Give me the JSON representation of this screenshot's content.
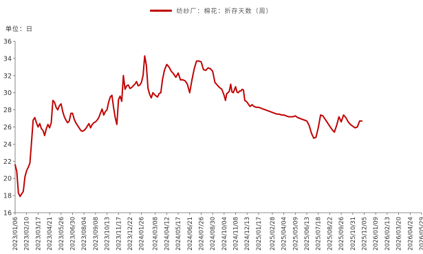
{
  "chart_data": {
    "type": "line",
    "legend": "纺纱厂：棉花：折存天数（周）",
    "unit_label": "单位：日",
    "ylim": [
      16,
      36
    ],
    "y_ticks": [
      16,
      18,
      20,
      22,
      24,
      26,
      28,
      30,
      32,
      34,
      36
    ],
    "x_range": [
      "2023-01-06",
      "2026-05-29"
    ],
    "x_ticks": [
      "2023/01/06",
      "2023/02/10",
      "2023/03/17",
      "2023/04/21",
      "2023/05/26",
      "2023/06/30",
      "2023/08/04",
      "2023/09/08",
      "2023/10/13",
      "2023/11/17",
      "2023/12/22",
      "2024/01/26",
      "2024/03/08",
      "2024/04/12",
      "2024/05/17",
      "2024/06/21",
      "2024/07/26",
      "2024/08/30",
      "2024/10/04",
      "2024/11/08",
      "2024/12/13",
      "2025/01/17",
      "2025/02/28",
      "2025/04/04",
      "2025/05/09",
      "2025/06/13",
      "2025/07/18",
      "2025/08/22",
      "2025/09/26",
      "2025/10/31",
      "2025/12/05",
      "2026/01/09",
      "2026/02/13",
      "2026/03/20",
      "2026/04/24",
      "2026/05/29"
    ],
    "grid": false,
    "legend_position": "top-center",
    "series": [
      {
        "name": "纺纱厂：棉花：折存天数（周）",
        "color": "#c00000",
        "points": [
          [
            "2023-01-06",
            21.6
          ],
          [
            "2023-01-11",
            20.8
          ],
          [
            "2023-01-16",
            18.3
          ],
          [
            "2023-01-21",
            17.9
          ],
          [
            "2023-01-26",
            18.2
          ],
          [
            "2023-01-31",
            18.5
          ],
          [
            "2023-02-05",
            20.2
          ],
          [
            "2023-02-10",
            20.9
          ],
          [
            "2023-02-15",
            21.3
          ],
          [
            "2023-02-20",
            21.8
          ],
          [
            "2023-02-25",
            24.2
          ],
          [
            "2023-03-02",
            26.8
          ],
          [
            "2023-03-07",
            27.1
          ],
          [
            "2023-03-12",
            26.5
          ],
          [
            "2023-03-17",
            26.0
          ],
          [
            "2023-03-22",
            26.4
          ],
          [
            "2023-03-27",
            25.8
          ],
          [
            "2023-04-01",
            25.6
          ],
          [
            "2023-04-06",
            25.0
          ],
          [
            "2023-04-11",
            25.8
          ],
          [
            "2023-04-16",
            26.3
          ],
          [
            "2023-04-21",
            25.9
          ],
          [
            "2023-04-26",
            26.5
          ],
          [
            "2023-05-01",
            29.1
          ],
          [
            "2023-05-06",
            28.9
          ],
          [
            "2023-05-11",
            28.3
          ],
          [
            "2023-05-16",
            28.0
          ],
          [
            "2023-05-21",
            28.5
          ],
          [
            "2023-05-26",
            28.7
          ],
          [
            "2023-05-31",
            27.8
          ],
          [
            "2023-06-05",
            27.2
          ],
          [
            "2023-06-10",
            26.8
          ],
          [
            "2023-06-15",
            26.5
          ],
          [
            "2023-06-20",
            26.7
          ],
          [
            "2023-06-25",
            27.6
          ],
          [
            "2023-06-30",
            27.6
          ],
          [
            "2023-07-05",
            26.9
          ],
          [
            "2023-07-10",
            26.5
          ],
          [
            "2023-07-15",
            26.2
          ],
          [
            "2023-07-20",
            25.9
          ],
          [
            "2023-07-25",
            25.6
          ],
          [
            "2023-07-30",
            25.5
          ],
          [
            "2023-08-04",
            25.6
          ],
          [
            "2023-08-09",
            25.8
          ],
          [
            "2023-08-14",
            26.1
          ],
          [
            "2023-08-19",
            26.4
          ],
          [
            "2023-08-24",
            25.9
          ],
          [
            "2023-08-29",
            26.3
          ],
          [
            "2023-09-03",
            26.5
          ],
          [
            "2023-09-08",
            26.6
          ],
          [
            "2023-09-13",
            26.8
          ],
          [
            "2023-09-18",
            27.1
          ],
          [
            "2023-09-23",
            27.6
          ],
          [
            "2023-09-28",
            28.1
          ],
          [
            "2023-10-03",
            27.4
          ],
          [
            "2023-10-08",
            27.8
          ],
          [
            "2023-10-13",
            28.0
          ],
          [
            "2023-10-18",
            28.9
          ],
          [
            "2023-10-23",
            29.5
          ],
          [
            "2023-10-28",
            29.7
          ],
          [
            "2023-11-02",
            28.3
          ],
          [
            "2023-11-07",
            27.1
          ],
          [
            "2023-11-12",
            26.3
          ],
          [
            "2023-11-17",
            29.2
          ],
          [
            "2023-11-22",
            29.6
          ],
          [
            "2023-11-27",
            29.0
          ],
          [
            "2023-12-02",
            32.0
          ],
          [
            "2023-12-07",
            30.4
          ],
          [
            "2023-12-12",
            30.8
          ],
          [
            "2023-12-17",
            30.9
          ],
          [
            "2023-12-22",
            30.5
          ],
          [
            "2023-12-27",
            30.6
          ],
          [
            "2024-01-01",
            30.8
          ],
          [
            "2024-01-06",
            31.0
          ],
          [
            "2024-01-11",
            31.3
          ],
          [
            "2024-01-16",
            30.8
          ],
          [
            "2024-01-21",
            30.9
          ],
          [
            "2024-01-26",
            31.2
          ],
          [
            "2024-01-31",
            32.0
          ],
          [
            "2024-02-05",
            34.3
          ],
          [
            "2024-02-10",
            33.2
          ],
          [
            "2024-02-15",
            30.5
          ],
          [
            "2024-02-20",
            29.8
          ],
          [
            "2024-02-25",
            29.4
          ],
          [
            "2024-03-01",
            30.0
          ],
          [
            "2024-03-08",
            29.7
          ],
          [
            "2024-03-15",
            29.5
          ],
          [
            "2024-03-20",
            29.9
          ],
          [
            "2024-03-25",
            30.0
          ],
          [
            "2024-03-30",
            31.5
          ],
          [
            "2024-04-05",
            32.6
          ],
          [
            "2024-04-12",
            33.3
          ],
          [
            "2024-04-19",
            33.0
          ],
          [
            "2024-04-26",
            32.5
          ],
          [
            "2024-05-03",
            32.2
          ],
          [
            "2024-05-10",
            31.8
          ],
          [
            "2024-05-17",
            32.3
          ],
          [
            "2024-05-24",
            31.5
          ],
          [
            "2024-05-31",
            31.5
          ],
          [
            "2024-06-07",
            31.4
          ],
          [
            "2024-06-14",
            31.0
          ],
          [
            "2024-06-21",
            30.0
          ],
          [
            "2024-06-28",
            31.5
          ],
          [
            "2024-07-05",
            32.8
          ],
          [
            "2024-07-12",
            33.7
          ],
          [
            "2024-07-19",
            33.7
          ],
          [
            "2024-07-26",
            33.6
          ],
          [
            "2024-08-02",
            32.7
          ],
          [
            "2024-08-09",
            32.6
          ],
          [
            "2024-08-16",
            32.9
          ],
          [
            "2024-08-23",
            32.8
          ],
          [
            "2024-08-30",
            32.5
          ],
          [
            "2024-09-06",
            31.2
          ],
          [
            "2024-09-13",
            30.9
          ],
          [
            "2024-09-20",
            30.6
          ],
          [
            "2024-09-27",
            30.4
          ],
          [
            "2024-10-04",
            29.7
          ],
          [
            "2024-10-08",
            29.1
          ],
          [
            "2024-10-12",
            29.9
          ],
          [
            "2024-10-16",
            30.0
          ],
          [
            "2024-10-20",
            30.2
          ],
          [
            "2024-10-24",
            31.0
          ],
          [
            "2024-10-28",
            30.1
          ],
          [
            "2024-11-01",
            30.0
          ],
          [
            "2024-11-04",
            30.3
          ],
          [
            "2024-11-08",
            30.7
          ],
          [
            "2024-11-12",
            30.1
          ],
          [
            "2024-11-16",
            30.0
          ],
          [
            "2024-11-20",
            30.2
          ],
          [
            "2024-11-24",
            30.2
          ],
          [
            "2024-11-28",
            30.4
          ],
          [
            "2024-12-02",
            30.3
          ],
          [
            "2024-12-06",
            29.1
          ],
          [
            "2024-12-10",
            29.0
          ],
          [
            "2024-12-13",
            28.9
          ],
          [
            "2024-12-18",
            28.6
          ],
          [
            "2024-12-22",
            28.4
          ],
          [
            "2024-12-28",
            28.6
          ],
          [
            "2025-01-03",
            28.4
          ],
          [
            "2025-01-10",
            28.3
          ],
          [
            "2025-01-17",
            28.3
          ],
          [
            "2025-01-24",
            28.2
          ],
          [
            "2025-01-31",
            28.1
          ],
          [
            "2025-02-07",
            28.0
          ],
          [
            "2025-02-14",
            27.9
          ],
          [
            "2025-02-21",
            27.8
          ],
          [
            "2025-02-28",
            27.7
          ],
          [
            "2025-03-07",
            27.6
          ],
          [
            "2025-03-14",
            27.5
          ],
          [
            "2025-03-21",
            27.5
          ],
          [
            "2025-03-28",
            27.4
          ],
          [
            "2025-04-04",
            27.4
          ],
          [
            "2025-04-11",
            27.3
          ],
          [
            "2025-04-18",
            27.2
          ],
          [
            "2025-04-25",
            27.2
          ],
          [
            "2025-05-02",
            27.2
          ],
          [
            "2025-05-09",
            27.3
          ],
          [
            "2025-05-16",
            27.1
          ],
          [
            "2025-05-23",
            27.0
          ],
          [
            "2025-05-30",
            26.9
          ],
          [
            "2025-06-06",
            26.8
          ],
          [
            "2025-06-13",
            26.7
          ],
          [
            "2025-06-20",
            26.2
          ],
          [
            "2025-06-27",
            25.3
          ],
          [
            "2025-07-04",
            24.7
          ],
          [
            "2025-07-11",
            24.8
          ],
          [
            "2025-07-18",
            25.9
          ],
          [
            "2025-07-25",
            27.4
          ],
          [
            "2025-08-01",
            27.3
          ],
          [
            "2025-08-08",
            26.9
          ],
          [
            "2025-08-15",
            26.5
          ],
          [
            "2025-08-22",
            26.1
          ],
          [
            "2025-08-29",
            25.7
          ],
          [
            "2025-09-05",
            25.4
          ],
          [
            "2025-09-12",
            26.2
          ],
          [
            "2025-09-19",
            27.2
          ],
          [
            "2025-09-26",
            26.6
          ],
          [
            "2025-10-03",
            27.4
          ],
          [
            "2025-10-10",
            27.1
          ],
          [
            "2025-10-17",
            26.6
          ],
          [
            "2025-10-24",
            26.3
          ],
          [
            "2025-10-31",
            26.1
          ],
          [
            "2025-11-07",
            25.9
          ],
          [
            "2025-11-14",
            26.0
          ],
          [
            "2025-11-21",
            26.7
          ],
          [
            "2025-11-28",
            26.7
          ]
        ]
      }
    ]
  }
}
